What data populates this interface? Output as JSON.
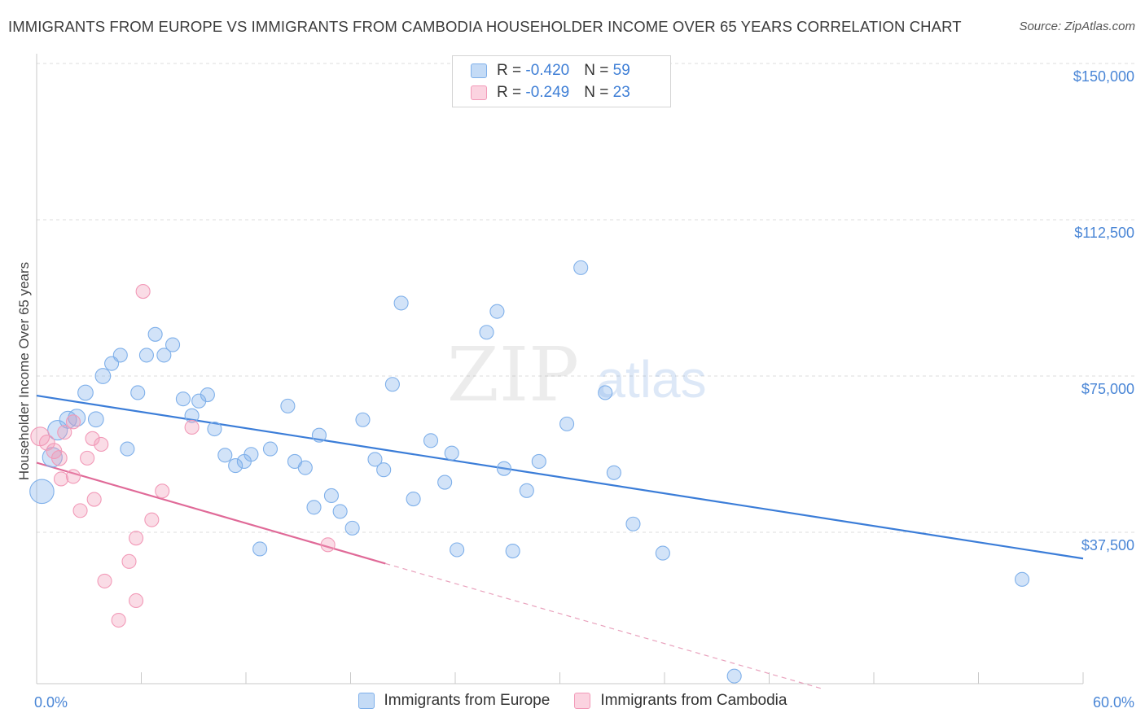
{
  "title": "IMMIGRANTS FROM EUROPE VS IMMIGRANTS FROM CAMBODIA HOUSEHOLDER INCOME OVER 65 YEARS CORRELATION CHART",
  "source": "Source: ZipAtlas.com",
  "watermark": {
    "zip": "ZIP",
    "atlas": "atlas"
  },
  "legend": {
    "r_label": "R = ",
    "n_label": "N = ",
    "rows": [
      {
        "r": "-0.420",
        "n": "59",
        "color": "#7fb0ea"
      },
      {
        "r": "-0.249",
        "n": "23",
        "color": "#f29ab8"
      }
    ]
  },
  "bottom_legend": [
    {
      "label": "Immigrants from Europe",
      "color": "#7fb0ea"
    },
    {
      "label": "Immigrants from Cambodia",
      "color": "#f29ab8"
    }
  ],
  "chart_data": {
    "type": "scatter",
    "xlabel": "",
    "ylabel": "Householder Income Over 65 years",
    "xlim": [
      0,
      60
    ],
    "ylim": [
      0,
      155000
    ],
    "x_tick_labels": [
      "0.0%",
      "60.0%"
    ],
    "y_ticks": [
      {
        "value": 37500,
        "label": "$37,500"
      },
      {
        "value": 75000,
        "label": "$75,000"
      },
      {
        "value": 112500,
        "label": "$112,500"
      },
      {
        "value": 150000,
        "label": "$150,000"
      }
    ],
    "grid": true,
    "legend_position": "top-center",
    "series": [
      {
        "name": "Immigrants from Europe",
        "color": "#7fb0ea",
        "trend": {
          "x": [
            0,
            60
          ],
          "y": [
            70300,
            31200
          ]
        },
        "points": [
          [
            0.3,
            47300,
            3
          ],
          [
            0.9,
            55500,
            2
          ],
          [
            1.2,
            62000,
            2
          ],
          [
            1.8,
            64500,
            1.5
          ],
          [
            2.3,
            65000,
            1.5
          ],
          [
            3.4,
            64600,
            1.2
          ],
          [
            2.8,
            71000,
            1.2
          ],
          [
            3.8,
            75000,
            1.2
          ],
          [
            4.3,
            78000,
            1
          ],
          [
            4.8,
            80000,
            1
          ],
          [
            5.2,
            57500,
            1
          ],
          [
            5.8,
            71000,
            1
          ],
          [
            6.3,
            80000,
            1
          ],
          [
            6.8,
            85000,
            1
          ],
          [
            7.3,
            80000,
            1
          ],
          [
            7.8,
            82500,
            1
          ],
          [
            8.4,
            69500,
            1
          ],
          [
            8.9,
            65500,
            1
          ],
          [
            9.3,
            69000,
            1
          ],
          [
            9.8,
            70500,
            1
          ],
          [
            10.2,
            62300,
            1
          ],
          [
            10.8,
            56000,
            1
          ],
          [
            11.4,
            53500,
            1
          ],
          [
            11.9,
            54500,
            1
          ],
          [
            12.3,
            56200,
            1
          ],
          [
            12.8,
            33500,
            1
          ],
          [
            13.4,
            57500,
            1
          ],
          [
            14.4,
            67800,
            1
          ],
          [
            14.8,
            54500,
            1
          ],
          [
            15.4,
            53000,
            1
          ],
          [
            15.9,
            43500,
            1
          ],
          [
            16.2,
            60800,
            1
          ],
          [
            16.9,
            46300,
            1
          ],
          [
            17.4,
            42500,
            1
          ],
          [
            18.1,
            38500,
            1
          ],
          [
            18.7,
            64500,
            1
          ],
          [
            19.4,
            55000,
            1
          ],
          [
            19.9,
            52500,
            1
          ],
          [
            20.4,
            73000,
            1
          ],
          [
            20.9,
            92500,
            1
          ],
          [
            21.6,
            45500,
            1
          ],
          [
            22.6,
            59500,
            1
          ],
          [
            23.4,
            49500,
            1
          ],
          [
            23.8,
            56500,
            1
          ],
          [
            24.1,
            33300,
            1
          ],
          [
            25.8,
            85500,
            1
          ],
          [
            26.4,
            90500,
            1
          ],
          [
            26.8,
            52800,
            1
          ],
          [
            27.3,
            33000,
            1
          ],
          [
            28.1,
            47500,
            1
          ],
          [
            28.8,
            54500,
            1
          ],
          [
            30.4,
            63500,
            1
          ],
          [
            31.2,
            101000,
            1
          ],
          [
            32.6,
            71000,
            1
          ],
          [
            33.1,
            51800,
            1
          ],
          [
            34.2,
            39500,
            1
          ],
          [
            35.9,
            32500,
            1
          ],
          [
            56.5,
            26200,
            1
          ],
          [
            40.0,
            3000,
            1
          ]
        ]
      },
      {
        "name": "Immigrants from Cambodia",
        "color": "#f29ab8",
        "trend": {
          "x": [
            0,
            20
          ],
          "y": [
            54200,
            30000
          ]
        },
        "trend_extension": {
          "x": [
            20,
            45
          ],
          "y": [
            30000,
            0
          ]
        },
        "points": [
          [
            0.2,
            60500,
            1.8
          ],
          [
            0.6,
            59000,
            1.2
          ],
          [
            1.0,
            57000,
            1.2
          ],
          [
            1.3,
            55300,
            1.2
          ],
          [
            1.4,
            50300,
            1
          ],
          [
            1.6,
            61500,
            1
          ],
          [
            2.1,
            64000,
            1
          ],
          [
            2.1,
            50900,
            1
          ],
          [
            2.5,
            42700,
            1
          ],
          [
            2.9,
            55300,
            1
          ],
          [
            3.3,
            45400,
            1
          ],
          [
            3.7,
            58600,
            1
          ],
          [
            3.9,
            25800,
            1
          ],
          [
            4.7,
            16400,
            1
          ],
          [
            5.3,
            30500,
            1
          ],
          [
            5.7,
            36100,
            1
          ],
          [
            5.7,
            21100,
            1
          ],
          [
            6.1,
            95300,
            1
          ],
          [
            6.6,
            40500,
            1
          ],
          [
            7.2,
            47400,
            1
          ],
          [
            8.9,
            62700,
            1
          ],
          [
            16.7,
            34500,
            1
          ],
          [
            3.2,
            60000,
            1
          ]
        ]
      }
    ]
  }
}
